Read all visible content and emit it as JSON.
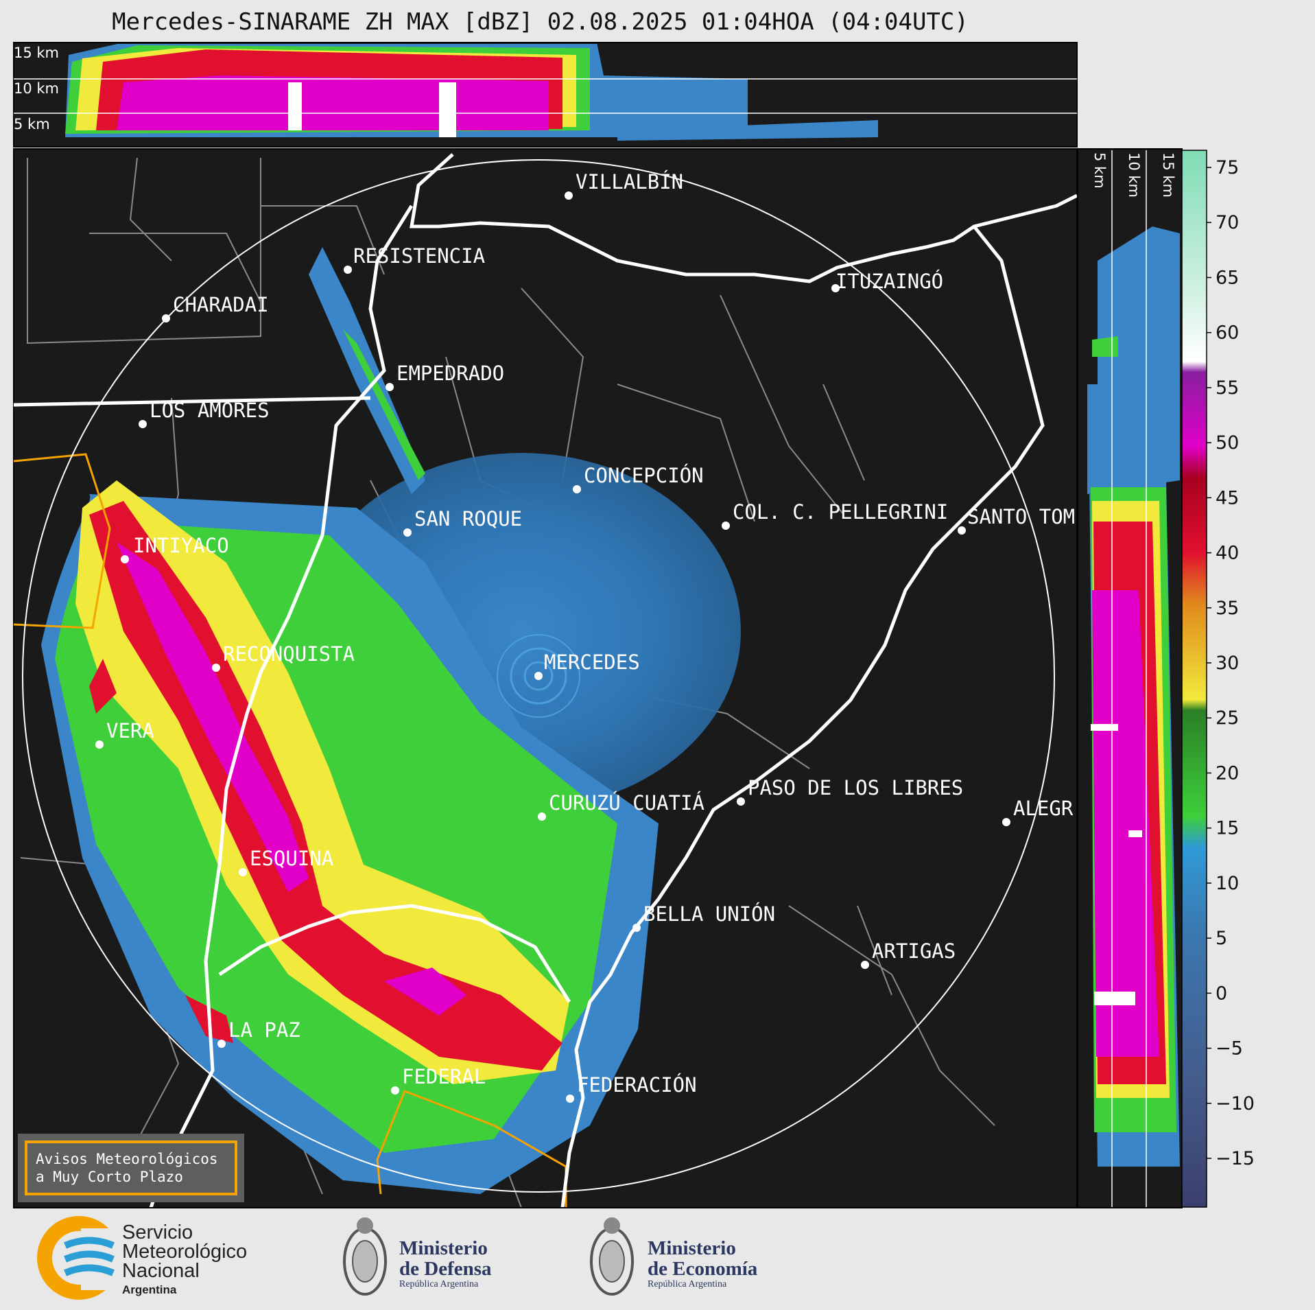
{
  "title": "Mercedes-SINARAME ZH MAX [dBZ] 02.08.2025 01:04HOA (04:04UTC)",
  "height_labels": [
    "15 km",
    "10 km",
    "5 km"
  ],
  "colorbar": {
    "unit": "dBZ",
    "ticks": [
      "75",
      "70",
      "65",
      "60",
      "55",
      "50",
      "45",
      "40",
      "35",
      "30",
      "25",
      "20",
      "15",
      "10",
      "5",
      "0",
      "−5",
      "−10",
      "−15"
    ]
  },
  "colors": {
    "background": "#1a1a1a",
    "border_white": "#ffffff",
    "warning_orange": "#f5a300"
  },
  "cities": [
    {
      "name": "VILLALBÍN"
    },
    {
      "name": "RESISTENCIA"
    },
    {
      "name": "CHARADAI"
    },
    {
      "name": "ITUZAINGÓ"
    },
    {
      "name": "EMPEDRADO"
    },
    {
      "name": "LOS AMORES"
    },
    {
      "name": "CONCEPCIÓN"
    },
    {
      "name": "COL. C. PELLEGRINI"
    },
    {
      "name": "SAN ROQUE"
    },
    {
      "name": "SANTO TOM"
    },
    {
      "name": "INTIYACO"
    },
    {
      "name": "MERCEDES"
    },
    {
      "name": "RECONQUISTA"
    },
    {
      "name": "VERA"
    },
    {
      "name": "PASO DE LOS LIBRES"
    },
    {
      "name": "CURUZÚ CUATIÁ"
    },
    {
      "name": "ALEGR"
    },
    {
      "name": "ESQUINA"
    },
    {
      "name": "BELLA UNIÓN"
    },
    {
      "name": "ARTIGAS"
    },
    {
      "name": "LA PAZ"
    },
    {
      "name": "FEDERAL"
    },
    {
      "name": "FEDERACIÓN"
    }
  ],
  "avisos": {
    "line1": "Avisos Meteorológicos",
    "line2": "a Muy Corto Plazo"
  },
  "logos": {
    "smn": {
      "line1": "Servicio",
      "line2": "Meteorológico",
      "line3": "Nacional",
      "line4": "Argentina"
    },
    "defensa": {
      "line1": "Ministerio",
      "line2": "de Defensa",
      "line3": "República Argentina"
    },
    "economia": {
      "line1": "Ministerio",
      "line2": "de Economía",
      "line3": "República Argentina"
    }
  }
}
